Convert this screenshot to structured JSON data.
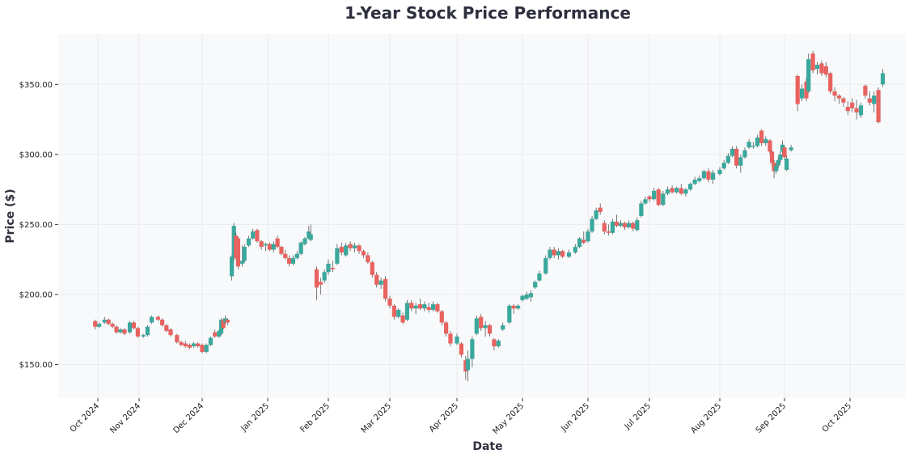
{
  "chart_data": {
    "type": "candlestick",
    "title": "1-Year Stock Price Performance",
    "xlabel": "Date",
    "ylabel": "Price ($)",
    "ylim": [
      126,
      386
    ],
    "y_ticks": [
      {
        "value": 150,
        "label": "$150.00"
      },
      {
        "value": 200,
        "label": "$200.00"
      },
      {
        "value": 250,
        "label": "$250.00"
      },
      {
        "value": 300,
        "label": "$300.00"
      },
      {
        "value": 350,
        "label": "$350.00"
      }
    ],
    "x_ticks": [
      {
        "date": "2024-10-01",
        "label": "Oct 2024"
      },
      {
        "date": "2024-11-01",
        "label": "Nov 2024"
      },
      {
        "date": "2024-12-01",
        "label": "Dec 2024"
      },
      {
        "date": "2025-01-01",
        "label": "Jan 2025"
      },
      {
        "date": "2025-02-01",
        "label": "Feb 2025"
      },
      {
        "date": "2025-03-01",
        "label": "Mar 2025"
      },
      {
        "date": "2025-04-01",
        "label": "Apr 2025"
      },
      {
        "date": "2025-05-01",
        "label": "May 2025"
      },
      {
        "date": "2025-06-01",
        "label": "Jun 2025"
      },
      {
        "date": "2025-07-01",
        "label": "Jul 2025"
      },
      {
        "date": "2025-08-01",
        "label": "Aug 2025"
      },
      {
        "date": "2025-09-01",
        "label": "Sep 2025"
      },
      {
        "date": "2025-10-01",
        "label": "Oct 2025"
      }
    ],
    "grid": true,
    "colors": {
      "up": "#3aa89c",
      "down": "#e8625f",
      "background": "#f8f9fb",
      "grid": "#e9eaee"
    },
    "columns": [
      "date",
      "open",
      "high",
      "low",
      "close"
    ],
    "candles": [
      [
        "2024-09-29",
        181,
        182,
        175,
        177
      ],
      [
        "2024-10-02",
        177,
        180,
        176,
        179
      ],
      [
        "2024-10-06",
        180,
        184,
        179,
        182
      ],
      [
        "2024-10-09",
        182,
        183,
        178,
        179
      ],
      [
        "2024-10-12",
        179,
        180,
        176,
        177
      ],
      [
        "2024-10-15",
        177,
        178,
        172,
        173
      ],
      [
        "2024-10-18",
        173,
        176,
        172,
        175
      ],
      [
        "2024-10-21",
        175,
        176,
        171,
        172
      ],
      [
        "2024-10-25",
        173,
        181,
        172,
        180
      ],
      [
        "2024-10-28",
        180,
        181,
        175,
        176
      ],
      [
        "2024-10-31",
        176,
        177,
        169,
        170
      ],
      [
        "2024-11-03",
        170,
        172,
        169,
        171
      ],
      [
        "2024-11-05",
        171,
        178,
        170,
        177
      ],
      [
        "2024-11-07",
        180,
        185,
        179,
        184
      ],
      [
        "2024-11-10",
        184,
        185,
        181,
        182
      ],
      [
        "2024-11-12",
        182,
        183,
        177,
        178
      ],
      [
        "2024-11-14",
        178,
        179,
        173,
        174
      ],
      [
        "2024-11-16",
        175,
        176,
        170,
        171
      ],
      [
        "2024-11-19",
        171,
        172,
        165,
        166
      ],
      [
        "2024-11-21",
        166,
        167,
        163,
        164
      ],
      [
        "2024-11-23",
        165,
        167,
        162,
        163
      ],
      [
        "2024-11-25",
        164,
        165,
        161,
        162
      ],
      [
        "2024-11-27",
        163,
        166,
        162,
        165
      ],
      [
        "2024-11-29",
        165,
        166,
        162,
        163
      ],
      [
        "2024-12-01",
        164,
        165,
        158,
        159
      ],
      [
        "2024-12-03",
        159,
        165,
        158,
        164
      ],
      [
        "2024-12-05",
        164,
        170,
        163,
        169
      ],
      [
        "2024-12-07",
        173,
        175,
        169,
        170
      ],
      [
        "2024-12-09",
        170,
        175,
        169,
        174
      ],
      [
        "2024-12-10",
        172,
        183,
        171,
        182
      ],
      [
        "2024-12-11",
        182,
        183,
        175,
        176
      ],
      [
        "2024-12-12",
        180,
        185,
        179,
        183
      ],
      [
        "2024-12-13",
        182,
        183,
        178,
        180
      ],
      [
        "2024-12-15",
        213,
        228,
        210,
        227
      ],
      [
        "2024-12-16",
        226,
        251,
        224,
        249
      ],
      [
        "2024-12-17",
        242,
        244,
        225,
        226
      ],
      [
        "2024-12-18",
        240,
        241,
        218,
        220
      ],
      [
        "2024-12-20",
        222,
        235,
        220,
        224
      ],
      [
        "2024-12-21",
        224,
        236,
        223,
        234
      ],
      [
        "2024-12-23",
        235,
        242,
        234,
        240
      ],
      [
        "2024-12-25",
        240,
        247,
        239,
        245
      ],
      [
        "2024-12-27",
        246,
        247,
        237,
        238
      ],
      [
        "2024-12-29",
        238,
        239,
        232,
        234
      ],
      [
        "2024-12-31",
        235,
        237,
        231,
        236
      ],
      [
        "2025-01-02",
        236,
        237,
        231,
        232
      ],
      [
        "2025-01-04",
        232,
        238,
        230,
        236
      ],
      [
        "2025-01-06",
        240,
        242,
        233,
        234
      ],
      [
        "2025-01-08",
        234,
        235,
        228,
        229
      ],
      [
        "2025-01-10",
        229,
        232,
        225,
        226
      ],
      [
        "2025-01-12",
        226,
        228,
        220,
        222
      ],
      [
        "2025-01-14",
        222,
        228,
        221,
        226
      ],
      [
        "2025-01-16",
        226,
        231,
        225,
        229
      ],
      [
        "2025-01-18",
        229,
        238,
        228,
        237
      ],
      [
        "2025-01-20",
        236,
        241,
        235,
        240
      ],
      [
        "2025-01-22",
        240,
        249,
        239,
        245
      ],
      [
        "2025-01-23",
        239,
        250,
        238,
        243
      ],
      [
        "2025-01-26",
        218,
        220,
        196,
        205
      ],
      [
        "2025-01-28",
        209,
        212,
        200,
        207
      ],
      [
        "2025-01-30",
        210,
        218,
        208,
        216
      ],
      [
        "2025-02-01",
        216,
        225,
        214,
        222
      ],
      [
        "2025-02-03",
        219,
        224,
        216,
        218
      ],
      [
        "2025-02-05",
        222,
        236,
        221,
        233
      ],
      [
        "2025-02-07",
        234,
        237,
        228,
        230
      ],
      [
        "2025-02-09",
        228,
        237,
        227,
        235
      ],
      [
        "2025-02-11",
        236,
        238,
        231,
        233
      ],
      [
        "2025-02-13",
        233,
        237,
        230,
        235
      ],
      [
        "2025-02-15",
        235,
        236,
        229,
        231
      ],
      [
        "2025-02-17",
        231,
        232,
        226,
        228
      ],
      [
        "2025-02-19",
        228,
        230,
        222,
        223
      ],
      [
        "2025-02-21",
        223,
        224,
        212,
        214
      ],
      [
        "2025-02-23",
        214,
        216,
        205,
        207
      ],
      [
        "2025-02-25",
        207,
        212,
        204,
        210
      ],
      [
        "2025-02-27",
        211,
        213,
        195,
        197
      ],
      [
        "2025-03-01",
        197,
        199,
        190,
        192
      ],
      [
        "2025-03-03",
        192,
        193,
        182,
        184
      ],
      [
        "2025-03-05",
        184,
        190,
        183,
        189
      ],
      [
        "2025-03-07",
        185,
        187,
        179,
        180
      ],
      [
        "2025-03-09",
        182,
        196,
        181,
        194
      ],
      [
        "2025-03-11",
        194,
        196,
        188,
        190
      ],
      [
        "2025-03-13",
        190,
        194,
        186,
        192
      ],
      [
        "2025-03-15",
        193,
        197,
        189,
        190
      ],
      [
        "2025-03-17",
        190,
        195,
        188,
        193
      ],
      [
        "2025-03-19",
        191,
        194,
        187,
        189
      ],
      [
        "2025-03-21",
        189,
        195,
        188,
        193
      ],
      [
        "2025-03-23",
        193,
        194,
        187,
        188
      ],
      [
        "2025-03-25",
        188,
        189,
        178,
        180
      ],
      [
        "2025-03-27",
        180,
        181,
        170,
        172
      ],
      [
        "2025-03-29",
        172,
        174,
        163,
        165
      ],
      [
        "2025-04-01",
        165,
        172,
        164,
        170
      ],
      [
        "2025-04-03",
        165,
        166,
        155,
        157
      ],
      [
        "2025-04-05",
        153,
        156,
        139,
        145
      ],
      [
        "2025-04-06",
        146,
        160,
        138,
        154
      ],
      [
        "2025-04-08",
        154,
        170,
        148,
        168
      ],
      [
        "2025-04-10",
        172,
        185,
        171,
        183
      ],
      [
        "2025-04-12",
        184,
        186,
        174,
        176
      ],
      [
        "2025-04-14",
        176,
        181,
        170,
        178
      ],
      [
        "2025-04-16",
        178,
        179,
        170,
        172
      ],
      [
        "2025-04-18",
        168,
        169,
        160,
        163
      ],
      [
        "2025-04-20",
        163,
        168,
        162,
        167
      ],
      [
        "2025-04-22",
        175,
        180,
        174,
        178
      ],
      [
        "2025-04-25",
        180,
        193,
        179,
        192
      ],
      [
        "2025-04-27",
        192,
        193,
        186,
        190
      ],
      [
        "2025-04-29",
        190,
        193,
        189,
        192
      ],
      [
        "2025-05-01",
        196,
        200,
        195,
        199
      ],
      [
        "2025-05-03",
        197,
        202,
        196,
        200
      ],
      [
        "2025-05-05",
        198,
        203,
        195,
        201
      ],
      [
        "2025-05-07",
        205,
        210,
        204,
        209
      ],
      [
        "2025-05-09",
        210,
        217,
        209,
        215
      ],
      [
        "2025-05-12",
        215,
        228,
        214,
        226
      ],
      [
        "2025-05-14",
        226,
        234,
        225,
        232
      ],
      [
        "2025-05-16",
        232,
        234,
        226,
        228
      ],
      [
        "2025-05-18",
        228,
        233,
        225,
        231
      ],
      [
        "2025-05-20",
        231,
        232,
        226,
        227
      ],
      [
        "2025-05-23",
        227,
        232,
        226,
        230
      ],
      [
        "2025-05-26",
        230,
        236,
        229,
        234
      ],
      [
        "2025-05-28",
        234,
        241,
        233,
        240
      ],
      [
        "2025-05-30",
        239,
        245,
        236,
        237
      ],
      [
        "2025-06-01",
        238,
        247,
        237,
        245
      ],
      [
        "2025-06-03",
        245,
        256,
        244,
        254
      ],
      [
        "2025-06-05",
        254,
        262,
        253,
        260
      ],
      [
        "2025-06-07",
        262,
        265,
        257,
        259
      ],
      [
        "2025-06-09",
        251,
        253,
        243,
        245
      ],
      [
        "2025-06-11",
        245,
        250,
        242,
        244
      ],
      [
        "2025-06-13",
        244,
        254,
        243,
        252
      ],
      [
        "2025-06-15",
        252,
        257,
        248,
        249
      ],
      [
        "2025-06-17",
        249,
        253,
        248,
        251
      ],
      [
        "2025-06-19",
        251,
        252,
        246,
        248
      ],
      [
        "2025-06-21",
        248,
        253,
        247,
        251
      ],
      [
        "2025-06-23",
        251,
        252,
        245,
        247
      ],
      [
        "2025-06-25",
        246,
        255,
        245,
        253
      ],
      [
        "2025-06-27",
        256,
        267,
        255,
        265
      ],
      [
        "2025-06-29",
        265,
        270,
        264,
        268
      ],
      [
        "2025-07-01",
        270,
        271,
        266,
        268
      ],
      [
        "2025-07-03",
        268,
        276,
        267,
        274
      ],
      [
        "2025-07-05",
        275,
        276,
        263,
        264
      ],
      [
        "2025-07-07",
        264,
        274,
        263,
        272
      ],
      [
        "2025-07-09",
        272,
        277,
        271,
        275
      ],
      [
        "2025-07-11",
        276,
        278,
        272,
        273
      ],
      [
        "2025-07-13",
        273,
        277,
        272,
        276
      ],
      [
        "2025-07-15",
        276,
        279,
        271,
        272
      ],
      [
        "2025-07-17",
        272,
        276,
        270,
        275
      ],
      [
        "2025-07-19",
        275,
        280,
        274,
        279
      ],
      [
        "2025-07-21",
        279,
        284,
        278,
        282
      ],
      [
        "2025-07-23",
        281,
        285,
        280,
        283
      ],
      [
        "2025-07-25",
        283,
        289,
        282,
        288
      ],
      [
        "2025-07-27",
        288,
        290,
        280,
        282
      ],
      [
        "2025-07-29",
        282,
        289,
        279,
        287
      ],
      [
        "2025-08-01",
        286,
        291,
        285,
        289
      ],
      [
        "2025-08-03",
        290,
        296,
        289,
        294
      ],
      [
        "2025-08-05",
        294,
        301,
        293,
        299
      ],
      [
        "2025-08-07",
        299,
        306,
        298,
        304
      ],
      [
        "2025-08-09",
        304,
        306,
        290,
        292
      ],
      [
        "2025-08-11",
        292,
        300,
        287,
        298
      ],
      [
        "2025-08-13",
        298,
        305,
        297,
        303
      ],
      [
        "2025-08-15",
        305,
        311,
        304,
        309
      ],
      [
        "2025-08-17",
        306,
        309,
        304,
        306
      ],
      [
        "2025-08-19",
        306,
        314,
        305,
        312
      ],
      [
        "2025-08-21",
        317,
        318,
        306,
        308
      ],
      [
        "2025-08-23",
        308,
        313,
        306,
        311
      ],
      [
        "2025-08-25",
        310,
        311,
        300,
        302
      ],
      [
        "2025-08-26",
        302,
        303,
        292,
        294
      ],
      [
        "2025-08-27",
        294,
        296,
        283,
        288
      ],
      [
        "2025-08-28",
        288,
        294,
        286,
        292
      ],
      [
        "2025-08-29",
        292,
        298,
        290,
        296
      ],
      [
        "2025-08-30",
        296,
        302,
        294,
        300
      ],
      [
        "2025-08-31",
        302,
        310,
        300,
        307
      ],
      [
        "2025-09-01",
        305,
        306,
        296,
        298
      ],
      [
        "2025-09-02",
        289,
        299,
        288,
        297
      ],
      [
        "2025-09-04",
        303,
        307,
        302,
        305
      ],
      [
        "2025-09-07",
        356,
        357,
        331,
        336
      ],
      [
        "2025-09-09",
        340,
        350,
        338,
        347
      ],
      [
        "2025-09-11",
        352,
        355,
        338,
        340
      ],
      [
        "2025-09-12",
        345,
        372,
        344,
        368
      ],
      [
        "2025-09-14",
        372,
        374,
        358,
        360
      ],
      [
        "2025-09-16",
        361,
        366,
        357,
        364
      ],
      [
        "2025-09-18",
        365,
        367,
        356,
        358
      ],
      [
        "2025-09-20",
        363,
        366,
        355,
        357
      ],
      [
        "2025-09-22",
        358,
        359,
        343,
        345
      ],
      [
        "2025-09-24",
        345,
        348,
        338,
        342
      ],
      [
        "2025-09-26",
        342,
        343,
        336,
        340
      ],
      [
        "2025-09-28",
        340,
        341,
        334,
        337
      ],
      [
        "2025-09-30",
        334,
        338,
        328,
        331
      ],
      [
        "2025-10-02",
        337,
        340,
        330,
        333
      ],
      [
        "2025-10-04",
        333,
        339,
        325,
        330
      ],
      [
        "2025-10-06",
        328,
        337,
        326,
        335
      ],
      [
        "2025-10-08",
        349,
        350,
        340,
        342
      ],
      [
        "2025-10-10",
        340,
        345,
        335,
        337
      ],
      [
        "2025-10-12",
        336,
        345,
        330,
        342
      ],
      [
        "2025-10-14",
        346,
        348,
        322,
        323
      ],
      [
        "2025-10-16",
        350,
        361,
        348,
        358
      ]
    ]
  }
}
